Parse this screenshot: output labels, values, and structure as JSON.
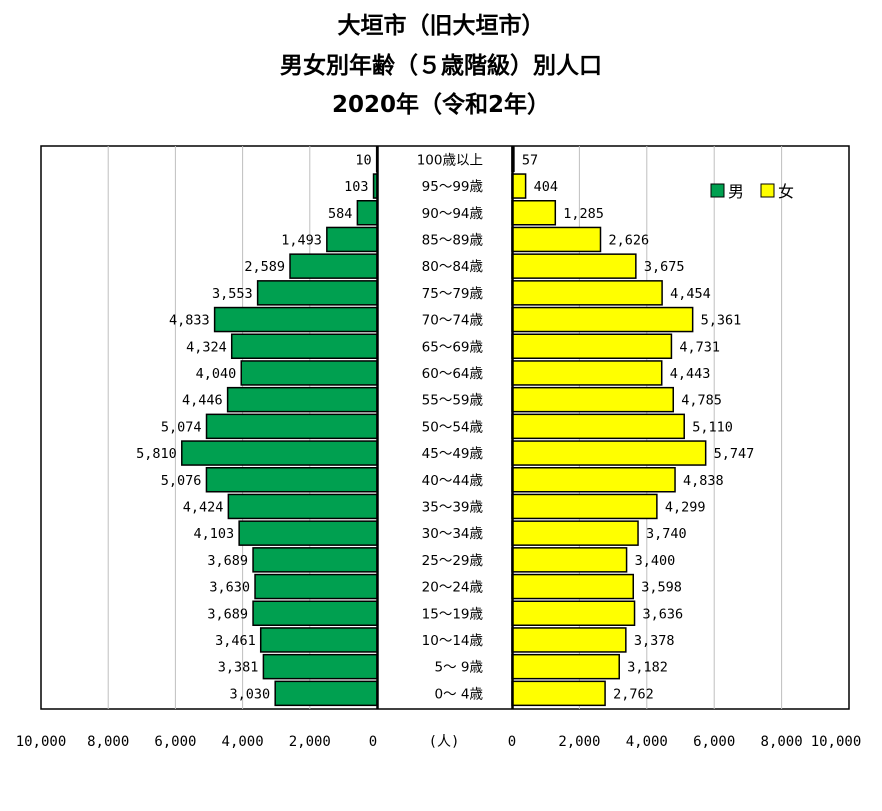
{
  "title": {
    "line1": "大垣市（旧大垣市）",
    "line2": "男女別年齢（５歳階級）別人口",
    "line3": "2020年（令和2年）"
  },
  "legend": {
    "male": "男",
    "female": "女"
  },
  "colors": {
    "male": "#00A050",
    "female": "#FFFF00"
  },
  "axis": {
    "left_ticks": [
      "10,000",
      "8,000",
      "6,000",
      "4,000",
      "2,000",
      "0"
    ],
    "unit": "(人)",
    "right_ticks": [
      "0",
      "2,000",
      "4,000",
      "6,000",
      "8,000",
      "10,000"
    ]
  },
  "chart_data": {
    "type": "bar",
    "orientation": "horizontal-pyramid",
    "xlim": [
      0,
      10000
    ],
    "grid": true,
    "categories": [
      "100歳以上",
      "95～99歳",
      "90～94歳",
      "85～89歳",
      "80～84歳",
      "75～79歳",
      "70～74歳",
      "65～69歳",
      "60～64歳",
      "55～59歳",
      "50～54歳",
      "45～49歳",
      "40～44歳",
      "35～39歳",
      "30～34歳",
      "25～29歳",
      "20～24歳",
      "15～19歳",
      "10～14歳",
      "5～ 9歳",
      "0～ 4歳"
    ],
    "series": [
      {
        "name": "男",
        "values": [
          10,
          103,
          584,
          1493,
          2589,
          3553,
          4833,
          4324,
          4040,
          4446,
          5074,
          5810,
          5076,
          4424,
          4103,
          3689,
          3630,
          3689,
          3461,
          3381,
          3030
        ],
        "labels": [
          "10",
          "103",
          "584",
          "1,493",
          "2,589",
          "3,553",
          "4,833",
          "4,324",
          "4,040",
          "4,446",
          "5,074",
          "5,810",
          "5,076",
          "4,424",
          "4,103",
          "3,689",
          "3,630",
          "3,689",
          "3,461",
          "3,381",
          "3,030"
        ]
      },
      {
        "name": "女",
        "values": [
          57,
          404,
          1285,
          2626,
          3675,
          4454,
          5361,
          4731,
          4443,
          4785,
          5110,
          5747,
          4838,
          4299,
          3740,
          3400,
          3598,
          3636,
          3378,
          3182,
          2762
        ],
        "labels": [
          "57",
          "404",
          "1,285",
          "2,626",
          "3,675",
          "4,454",
          "5,361",
          "4,731",
          "4,443",
          "4,785",
          "5,110",
          "5,747",
          "4,838",
          "4,299",
          "3,740",
          "3,400",
          "3,598",
          "3,636",
          "3,378",
          "3,182",
          "2,762"
        ]
      }
    ],
    "legend_position": "top-right"
  }
}
